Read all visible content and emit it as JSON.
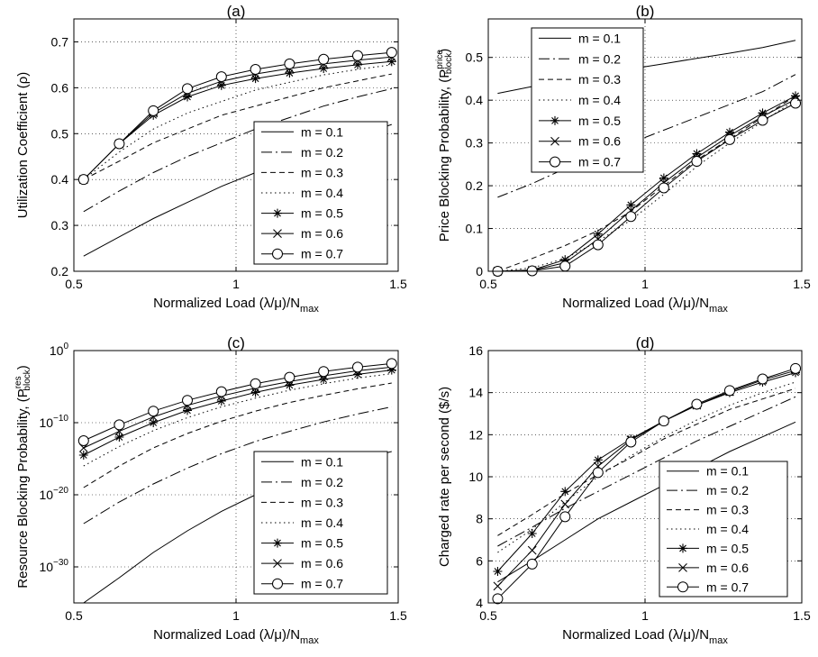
{
  "chart_data": [
    {
      "type": "line",
      "title": "(a)",
      "xlabel": "Normalized Load (λ/μ)/N",
      "xlabel_sub": "max",
      "ylabel": "Utilization Coefficient (ρ)",
      "ylabel_sup": "",
      "ylabel_close": "",
      "xlim": [
        0.5,
        1.5
      ],
      "ylim": [
        0.2,
        0.75
      ],
      "yscale": "linear",
      "xticks": [
        0.5,
        1,
        1.5
      ],
      "xtick_labels": [
        "0.5",
        "1",
        "1.5"
      ],
      "yticks": [
        0.2,
        0.3,
        0.4,
        0.5,
        0.6,
        0.7
      ],
      "ytick_labels": [
        "0.2",
        "0.3",
        "0.4",
        "0.5",
        "0.6",
        "0.7"
      ],
      "grid": true,
      "legend_position": "lower-right",
      "x": [
        0.53,
        0.64,
        0.745,
        0.85,
        0.955,
        1.06,
        1.165,
        1.27,
        1.375,
        1.48
      ],
      "series": [
        {
          "name": "m = 0.1",
          "values": [
            0.233,
            0.275,
            0.315,
            0.35,
            0.385,
            0.415,
            0.445,
            0.47,
            0.495,
            0.52
          ]
        },
        {
          "name": "m = 0.2",
          "values": [
            0.33,
            0.375,
            0.415,
            0.45,
            0.48,
            0.51,
            0.535,
            0.56,
            0.58,
            0.598
          ]
        },
        {
          "name": "m = 0.3",
          "values": [
            0.4,
            0.44,
            0.48,
            0.51,
            0.54,
            0.56,
            0.58,
            0.6,
            0.615,
            0.63
          ]
        },
        {
          "name": "m = 0.4",
          "values": [
            0.4,
            0.46,
            0.51,
            0.545,
            0.57,
            0.595,
            0.612,
            0.628,
            0.64,
            0.65
          ]
        },
        {
          "name": "m = 0.5",
          "values": [
            0.4,
            0.478,
            0.54,
            0.58,
            0.605,
            0.62,
            0.632,
            0.642,
            0.65,
            0.657
          ]
        },
        {
          "name": "m = 0.6",
          "values": [
            0.4,
            0.478,
            0.545,
            0.588,
            0.614,
            0.63,
            0.642,
            0.652,
            0.66,
            0.667
          ]
        },
        {
          "name": "m = 0.7",
          "values": [
            0.4,
            0.478,
            0.55,
            0.598,
            0.624,
            0.64,
            0.652,
            0.662,
            0.67,
            0.677
          ]
        }
      ]
    },
    {
      "type": "line",
      "title": "(b)",
      "xlabel": "Normalized Load (λ/μ)/N",
      "xlabel_sub": "max",
      "ylabel": "Price Blocking Probability, (P",
      "ylabel_sup": "price",
      "ylabel_sub": "block",
      "ylabel_close": ")",
      "xlim": [
        0.5,
        1.5
      ],
      "ylim": [
        0,
        0.59
      ],
      "yscale": "linear",
      "xticks": [
        0.5,
        1,
        1.5
      ],
      "xtick_labels": [
        "0.5",
        "1",
        "1.5"
      ],
      "yticks": [
        0,
        0.1,
        0.2,
        0.3,
        0.4,
        0.5
      ],
      "ytick_labels": [
        "0",
        "0.1",
        "0.2",
        "0.3",
        "0.4",
        "0.5"
      ],
      "grid": true,
      "legend_position": "upper-left",
      "x": [
        0.53,
        0.64,
        0.745,
        0.85,
        0.955,
        1.06,
        1.165,
        1.27,
        1.375,
        1.48
      ],
      "series": [
        {
          "name": "m = 0.1",
          "values": [
            0.416,
            0.432,
            0.447,
            0.46,
            0.473,
            0.485,
            0.498,
            0.51,
            0.523,
            0.54
          ]
        },
        {
          "name": "m = 0.2",
          "values": [
            0.173,
            0.205,
            0.24,
            0.27,
            0.3,
            0.33,
            0.36,
            0.39,
            0.42,
            0.46
          ]
        },
        {
          "name": "m = 0.3",
          "values": [
            0.0,
            0.03,
            0.06,
            0.095,
            0.14,
            0.2,
            0.26,
            0.31,
            0.36,
            0.41
          ]
        },
        {
          "name": "m = 0.4",
          "values": [
            0.0,
            0.008,
            0.03,
            0.07,
            0.12,
            0.18,
            0.245,
            0.3,
            0.35,
            0.4
          ]
        },
        {
          "name": "m = 0.5",
          "values": [
            0.0,
            0.003,
            0.027,
            0.087,
            0.155,
            0.218,
            0.275,
            0.325,
            0.37,
            0.41
          ]
        },
        {
          "name": "m = 0.6",
          "values": [
            0.0,
            0.002,
            0.02,
            0.075,
            0.142,
            0.207,
            0.266,
            0.317,
            0.362,
            0.402
          ]
        },
        {
          "name": "m = 0.7",
          "values": [
            0.0,
            0.001,
            0.012,
            0.062,
            0.128,
            0.195,
            0.257,
            0.308,
            0.353,
            0.393
          ]
        }
      ]
    },
    {
      "type": "line",
      "title": "(c)",
      "xlabel": "Normalized Load (λ/μ)/N",
      "xlabel_sub": "max",
      "ylabel": "Resource Blocking Probability, (P",
      "ylabel_sup": "res",
      "ylabel_sub": "block",
      "ylabel_close": ")",
      "xlim": [
        0.5,
        1.5
      ],
      "ylim": [
        -35,
        0
      ],
      "yscale": "log10",
      "xticks": [
        0.5,
        1,
        1.5
      ],
      "xtick_labels": [
        "0.5",
        "1",
        "1.5"
      ],
      "yticks": [
        0,
        -10,
        -20,
        -30
      ],
      "ytick_base": "10",
      "ytick_exps": [
        "0",
        "−10",
        "−20",
        "−30"
      ],
      "grid": true,
      "legend_position": "lower-right",
      "x": [
        0.53,
        0.64,
        0.745,
        0.85,
        0.955,
        1.06,
        1.165,
        1.27,
        1.375,
        1.48
      ],
      "series_units": "log10 of probability",
      "series": [
        {
          "name": "m = 0.1",
          "values": [
            -35,
            -31.5,
            -28,
            -25,
            -22.3,
            -20,
            -18.2,
            -16.6,
            -15.2,
            -14
          ]
        },
        {
          "name": "m = 0.2",
          "values": [
            -24,
            -21,
            -18.5,
            -16.3,
            -14.3,
            -12.6,
            -11.2,
            -9.9,
            -8.8,
            -7.8
          ]
        },
        {
          "name": "m = 0.3",
          "values": [
            -19,
            -16,
            -13.5,
            -11.5,
            -9.8,
            -8.4,
            -7.2,
            -6.2,
            -5.3,
            -4.5
          ]
        },
        {
          "name": "m = 0.4",
          "values": [
            -16,
            -13.3,
            -11.1,
            -9.3,
            -7.8,
            -6.6,
            -5.5,
            -4.6,
            -3.8,
            -3.2
          ]
        },
        {
          "name": "m = 0.5",
          "values": [
            -14.5,
            -12,
            -10,
            -8.3,
            -7,
            -5.8,
            -4.8,
            -4,
            -3.3,
            -2.7
          ]
        },
        {
          "name": "m = 0.6",
          "values": [
            -13.5,
            -11.2,
            -9.2,
            -7.6,
            -6.3,
            -5.2,
            -4.3,
            -3.5,
            -2.8,
            -2.3
          ]
        },
        {
          "name": "m = 0.7",
          "values": [
            -12.5,
            -10.3,
            -8.4,
            -6.9,
            -5.7,
            -4.6,
            -3.7,
            -2.9,
            -2.3,
            -1.8
          ]
        }
      ]
    },
    {
      "type": "line",
      "title": "(d)",
      "xlabel": "Normalized Load (λ/μ)/N",
      "xlabel_sub": "max",
      "ylabel": "Charged rate per second ($/s)",
      "ylabel_sup": "",
      "ylabel_close": "",
      "xlim": [
        0.5,
        1.5
      ],
      "ylim": [
        4,
        16
      ],
      "yscale": "linear",
      "xticks": [
        0.5,
        1,
        1.5
      ],
      "xtick_labels": [
        "0.5",
        "1",
        "1.5"
      ],
      "yticks": [
        4,
        6,
        8,
        10,
        12,
        14,
        16
      ],
      "ytick_labels": [
        "4",
        "6",
        "8",
        "10",
        "12",
        "14",
        "16"
      ],
      "grid": true,
      "legend_position": "lower-right",
      "x": [
        0.53,
        0.64,
        0.745,
        0.85,
        0.955,
        1.06,
        1.165,
        1.27,
        1.375,
        1.48
      ],
      "series": [
        {
          "name": "m = 0.1",
          "values": [
            5.0,
            6.0,
            7.0,
            8.0,
            8.8,
            9.6,
            10.4,
            11.2,
            11.9,
            12.6
          ]
        },
        {
          "name": "m = 0.2",
          "values": [
            6.7,
            7.6,
            8.5,
            9.3,
            10.1,
            10.9,
            11.7,
            12.4,
            13.1,
            13.8
          ]
        },
        {
          "name": "m = 0.3",
          "values": [
            7.2,
            8.2,
            9.2,
            10.1,
            10.9,
            11.8,
            12.5,
            13.2,
            13.7,
            14.2
          ]
        },
        {
          "name": "m = 0.4",
          "values": [
            6.4,
            7.5,
            8.8,
            10.0,
            11.0,
            11.9,
            12.7,
            13.4,
            14.0,
            14.5
          ]
        },
        {
          "name": "m = 0.5",
          "values": [
            5.5,
            7.3,
            9.3,
            10.8,
            11.8,
            12.65,
            13.4,
            14.0,
            14.5,
            14.95
          ]
        },
        {
          "name": "m = 0.6",
          "values": [
            4.8,
            6.5,
            8.7,
            10.5,
            11.75,
            12.65,
            13.4,
            14.05,
            14.6,
            15.05
          ]
        },
        {
          "name": "m = 0.7",
          "values": [
            4.2,
            5.85,
            8.1,
            10.2,
            11.65,
            12.65,
            13.45,
            14.1,
            14.65,
            15.15
          ]
        }
      ]
    }
  ]
}
